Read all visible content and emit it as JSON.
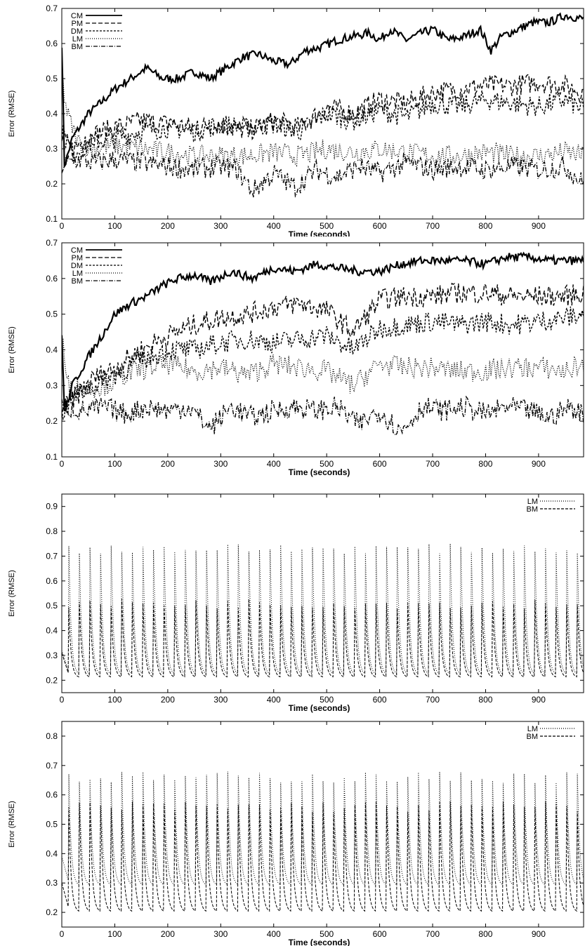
{
  "chart_data": [
    {
      "type": "line",
      "xlabel": "Time (seconds)",
      "ylabel": "Error (RMSE)",
      "xlim": [
        0,
        985
      ],
      "ylim": [
        0.1,
        0.7
      ],
      "xticks": [
        0,
        100,
        200,
        300,
        400,
        500,
        600,
        700,
        800,
        900
      ],
      "yticks": [
        0.1,
        0.2,
        0.3,
        0.4,
        0.5,
        0.6,
        0.7
      ],
      "legend_position": "top-left",
      "series": [
        {
          "name": "CM",
          "dash": "",
          "width": 2.2,
          "x": [
            0,
            5,
            20,
            50,
            80,
            100,
            130,
            160,
            190,
            220,
            250,
            280,
            310,
            340,
            370,
            400,
            430,
            460,
            490,
            520,
            550,
            580,
            600,
            620,
            650,
            680,
            700,
            730,
            760,
            790,
            810,
            830,
            860,
            890,
            920,
            950,
            985
          ],
          "y": [
            0.6,
            0.25,
            0.33,
            0.4,
            0.44,
            0.47,
            0.5,
            0.53,
            0.5,
            0.5,
            0.52,
            0.5,
            0.53,
            0.56,
            0.57,
            0.55,
            0.54,
            0.58,
            0.59,
            0.61,
            0.62,
            0.63,
            0.61,
            0.64,
            0.61,
            0.63,
            0.64,
            0.61,
            0.62,
            0.64,
            0.58,
            0.62,
            0.64,
            0.66,
            0.66,
            0.68,
            0.67
          ]
        },
        {
          "name": "PM",
          "dash": "6,3",
          "width": 1.4,
          "x": [
            0,
            20,
            60,
            100,
            150,
            200,
            250,
            300,
            350,
            400,
            450,
            500,
            550,
            600,
            650,
            700,
            750,
            800,
            850,
            900,
            950,
            985
          ],
          "y": [
            0.33,
            0.3,
            0.34,
            0.36,
            0.38,
            0.37,
            0.36,
            0.37,
            0.35,
            0.38,
            0.36,
            0.42,
            0.4,
            0.44,
            0.43,
            0.46,
            0.47,
            0.48,
            0.48,
            0.49,
            0.48,
            0.46
          ]
        },
        {
          "name": "DM",
          "dash": "3,2",
          "width": 1.4,
          "x": [
            0,
            20,
            60,
            100,
            150,
            200,
            250,
            300,
            350,
            400,
            450,
            500,
            550,
            600,
            650,
            700,
            750,
            800,
            850,
            900,
            950,
            985
          ],
          "y": [
            0.35,
            0.29,
            0.32,
            0.33,
            0.35,
            0.36,
            0.35,
            0.37,
            0.36,
            0.37,
            0.35,
            0.4,
            0.38,
            0.41,
            0.39,
            0.43,
            0.42,
            0.44,
            0.43,
            0.42,
            0.44,
            0.41
          ]
        },
        {
          "name": "LM",
          "dash": "1,2",
          "width": 1.4,
          "x": [
            0,
            10,
            30,
            60,
            100,
            150,
            200,
            250,
            300,
            350,
            400,
            450,
            500,
            550,
            600,
            650,
            700,
            750,
            800,
            850,
            900,
            950,
            985
          ],
          "y": [
            0.5,
            0.4,
            0.32,
            0.3,
            0.31,
            0.3,
            0.29,
            0.28,
            0.28,
            0.28,
            0.29,
            0.28,
            0.3,
            0.29,
            0.3,
            0.29,
            0.28,
            0.28,
            0.29,
            0.28,
            0.28,
            0.29,
            0.28
          ]
        },
        {
          "name": "BM",
          "dash": "6,2,1,2",
          "width": 1.4,
          "x": [
            0,
            30,
            60,
            100,
            150,
            200,
            250,
            300,
            330,
            360,
            400,
            440,
            480,
            520,
            560,
            600,
            650,
            700,
            750,
            800,
            850,
            900,
            950,
            985
          ],
          "y": [
            0.25,
            0.27,
            0.26,
            0.27,
            0.26,
            0.25,
            0.24,
            0.25,
            0.24,
            0.18,
            0.23,
            0.19,
            0.24,
            0.22,
            0.25,
            0.23,
            0.26,
            0.24,
            0.25,
            0.24,
            0.25,
            0.24,
            0.25,
            0.2
          ]
        }
      ]
    },
    {
      "type": "line",
      "xlabel": "Time (seconds)",
      "ylabel": "Error (RMSE)",
      "xlim": [
        0,
        985
      ],
      "ylim": [
        0.1,
        0.7
      ],
      "xticks": [
        0,
        100,
        200,
        300,
        400,
        500,
        600,
        700,
        800,
        900
      ],
      "yticks": [
        0.1,
        0.2,
        0.3,
        0.4,
        0.5,
        0.6,
        0.7
      ],
      "legend_position": "top-left",
      "series": [
        {
          "name": "CM",
          "dash": "",
          "width": 2.2,
          "x": [
            0,
            5,
            20,
            50,
            80,
            100,
            130,
            160,
            190,
            220,
            250,
            280,
            320,
            360,
            400,
            440,
            480,
            520,
            560,
            600,
            640,
            680,
            720,
            760,
            800,
            840,
            880,
            920,
            960,
            985
          ],
          "y": [
            0.45,
            0.22,
            0.3,
            0.38,
            0.45,
            0.5,
            0.53,
            0.55,
            0.58,
            0.6,
            0.61,
            0.59,
            0.62,
            0.6,
            0.63,
            0.62,
            0.64,
            0.63,
            0.62,
            0.62,
            0.64,
            0.65,
            0.65,
            0.65,
            0.64,
            0.66,
            0.66,
            0.65,
            0.65,
            0.65
          ]
        },
        {
          "name": "PM",
          "dash": "6,3",
          "width": 1.4,
          "x": [
            0,
            20,
            60,
            100,
            150,
            200,
            250,
            300,
            350,
            400,
            450,
            500,
            550,
            600,
            650,
            700,
            750,
            800,
            850,
            900,
            950,
            985
          ],
          "y": [
            0.23,
            0.26,
            0.32,
            0.35,
            0.4,
            0.44,
            0.47,
            0.49,
            0.5,
            0.52,
            0.53,
            0.51,
            0.45,
            0.54,
            0.55,
            0.55,
            0.56,
            0.56,
            0.55,
            0.55,
            0.55,
            0.56
          ]
        },
        {
          "name": "DM",
          "dash": "3,2",
          "width": 1.4,
          "x": [
            0,
            20,
            60,
            100,
            150,
            200,
            250,
            300,
            350,
            400,
            450,
            500,
            550,
            600,
            650,
            700,
            750,
            800,
            850,
            900,
            950,
            985
          ],
          "y": [
            0.22,
            0.27,
            0.3,
            0.33,
            0.37,
            0.4,
            0.4,
            0.42,
            0.43,
            0.42,
            0.43,
            0.44,
            0.4,
            0.46,
            0.47,
            0.48,
            0.47,
            0.48,
            0.47,
            0.48,
            0.49,
            0.5
          ]
        },
        {
          "name": "LM",
          "dash": "1,2",
          "width": 1.4,
          "x": [
            0,
            10,
            40,
            80,
            120,
            160,
            200,
            250,
            300,
            350,
            400,
            450,
            500,
            550,
            600,
            650,
            700,
            750,
            800,
            850,
            900,
            950,
            985
          ],
          "y": [
            0.45,
            0.3,
            0.29,
            0.3,
            0.33,
            0.35,
            0.36,
            0.34,
            0.35,
            0.33,
            0.36,
            0.35,
            0.34,
            0.3,
            0.36,
            0.35,
            0.35,
            0.34,
            0.34,
            0.35,
            0.35,
            0.34,
            0.36
          ]
        },
        {
          "name": "BM",
          "dash": "6,2,1,2",
          "width": 1.4,
          "x": [
            0,
            40,
            80,
            120,
            160,
            200,
            240,
            280,
            320,
            360,
            400,
            440,
            480,
            520,
            560,
            600,
            640,
            680,
            720,
            760,
            800,
            840,
            880,
            920,
            960,
            985
          ],
          "y": [
            0.24,
            0.23,
            0.24,
            0.22,
            0.24,
            0.23,
            0.24,
            0.18,
            0.24,
            0.21,
            0.23,
            0.24,
            0.23,
            0.24,
            0.19,
            0.23,
            0.17,
            0.24,
            0.23,
            0.24,
            0.22,
            0.24,
            0.23,
            0.21,
            0.24,
            0.22
          ]
        }
      ]
    },
    {
      "type": "line",
      "xlabel": "Time (seconds)",
      "ylabel": "Error (RMSE)",
      "xlim": [
        0,
        985
      ],
      "ylim": [
        0.15,
        0.95
      ],
      "xticks": [
        0,
        100,
        200,
        300,
        400,
        500,
        600,
        700,
        800,
        900
      ],
      "yticks": [
        0.2,
        0.3,
        0.4,
        0.5,
        0.6,
        0.7,
        0.8,
        0.9
      ],
      "legend_position": "top-right",
      "periodic": true,
      "series": [
        {
          "name": "LM",
          "dash": "1,2",
          "width": 1.0,
          "period_s": 20,
          "peak": 0.73,
          "trough": 0.22
        },
        {
          "name": "BM",
          "dash": "4,2",
          "width": 1.0,
          "period_s": 20,
          "peak": 0.51,
          "trough": 0.21
        }
      ]
    },
    {
      "type": "line",
      "xlabel": "Time (seconds)",
      "ylabel": "Error (RMSE)",
      "xlim": [
        0,
        985
      ],
      "ylim": [
        0.15,
        0.85
      ],
      "xticks": [
        0,
        100,
        200,
        300,
        400,
        500,
        600,
        700,
        800,
        900
      ],
      "yticks": [
        0.2,
        0.3,
        0.4,
        0.5,
        0.6,
        0.7,
        0.8
      ],
      "legend_position": "top-right",
      "periodic": true,
      "series": [
        {
          "name": "LM",
          "dash": "1,2",
          "width": 1.0,
          "period_s": 20,
          "peak": 0.66,
          "trough": 0.29
        },
        {
          "name": "BM",
          "dash": "4,2",
          "width": 1.0,
          "period_s": 20,
          "peak": 0.56,
          "trough": 0.2
        }
      ]
    }
  ]
}
